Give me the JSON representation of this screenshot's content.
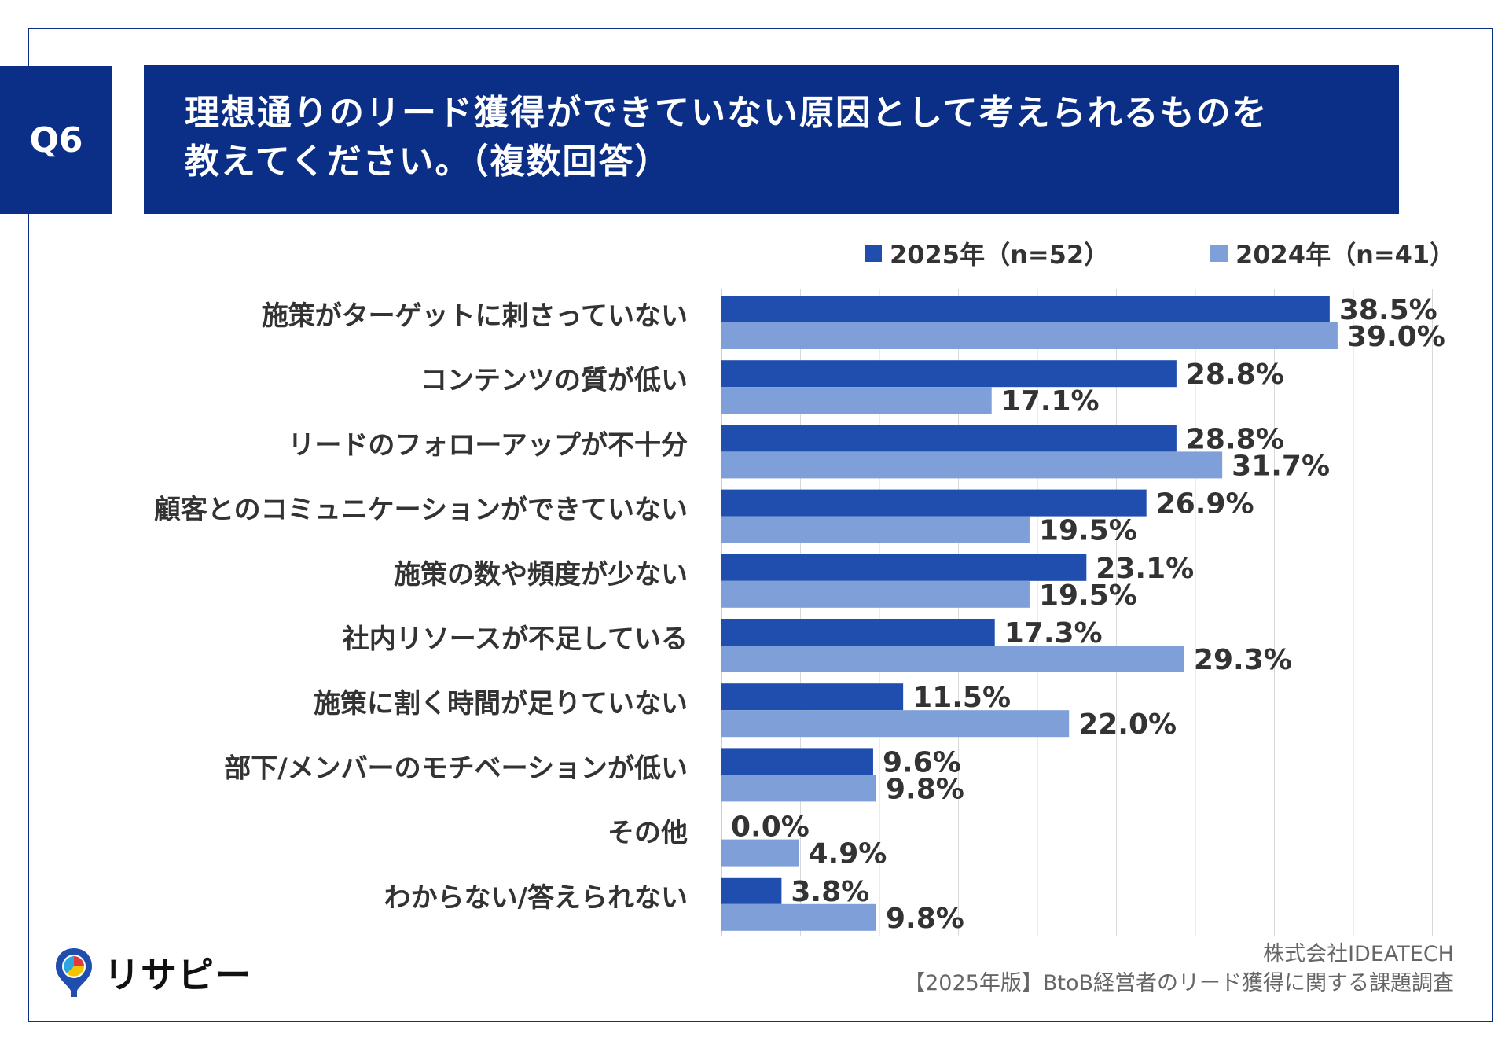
{
  "header": {
    "badge": "Q6",
    "title_line1": "理想通りのリード獲得ができていない原因として考えられるものを",
    "title_line2": "教えてください。（複数回答）"
  },
  "colors": {
    "navy": "#0b2f86",
    "series2025": "#1f4eaf",
    "series2024": "#7f9fd8"
  },
  "chart_data": {
    "type": "bar",
    "orientation": "horizontal",
    "categories": [
      "施策がターゲットに刺さっていない",
      "コンテンツの質が低い",
      "リードのフォローアップが不十分",
      "顧客とのコミュニケーションができていない",
      "施策の数や頻度が少ない",
      "社内リソースが不足している",
      "施策に割く時間が足りていない",
      "部下/メンバーのモチベーションが低い",
      "その他",
      "わからない/答えられない"
    ],
    "series": [
      {
        "name": "2025年（n=52）",
        "color": "#1f4eaf",
        "values": [
          38.5,
          28.8,
          28.8,
          26.9,
          23.1,
          17.3,
          11.5,
          9.6,
          0.0,
          3.8
        ]
      },
      {
        "name": "2024年（n=41）",
        "color": "#7f9fd8",
        "values": [
          39.0,
          17.1,
          31.7,
          19.5,
          19.5,
          29.3,
          22.0,
          9.8,
          4.9,
          9.8
        ]
      }
    ],
    "xlim": [
      0,
      45
    ],
    "gridline_step": 5,
    "value_suffix": "%",
    "legend_position": "top-right"
  },
  "footer": {
    "company": "株式会社IDEATECH",
    "survey": "【2025年版】BtoB経営者のリード獲得に関する課題調査",
    "logo_text": "リサピー"
  }
}
